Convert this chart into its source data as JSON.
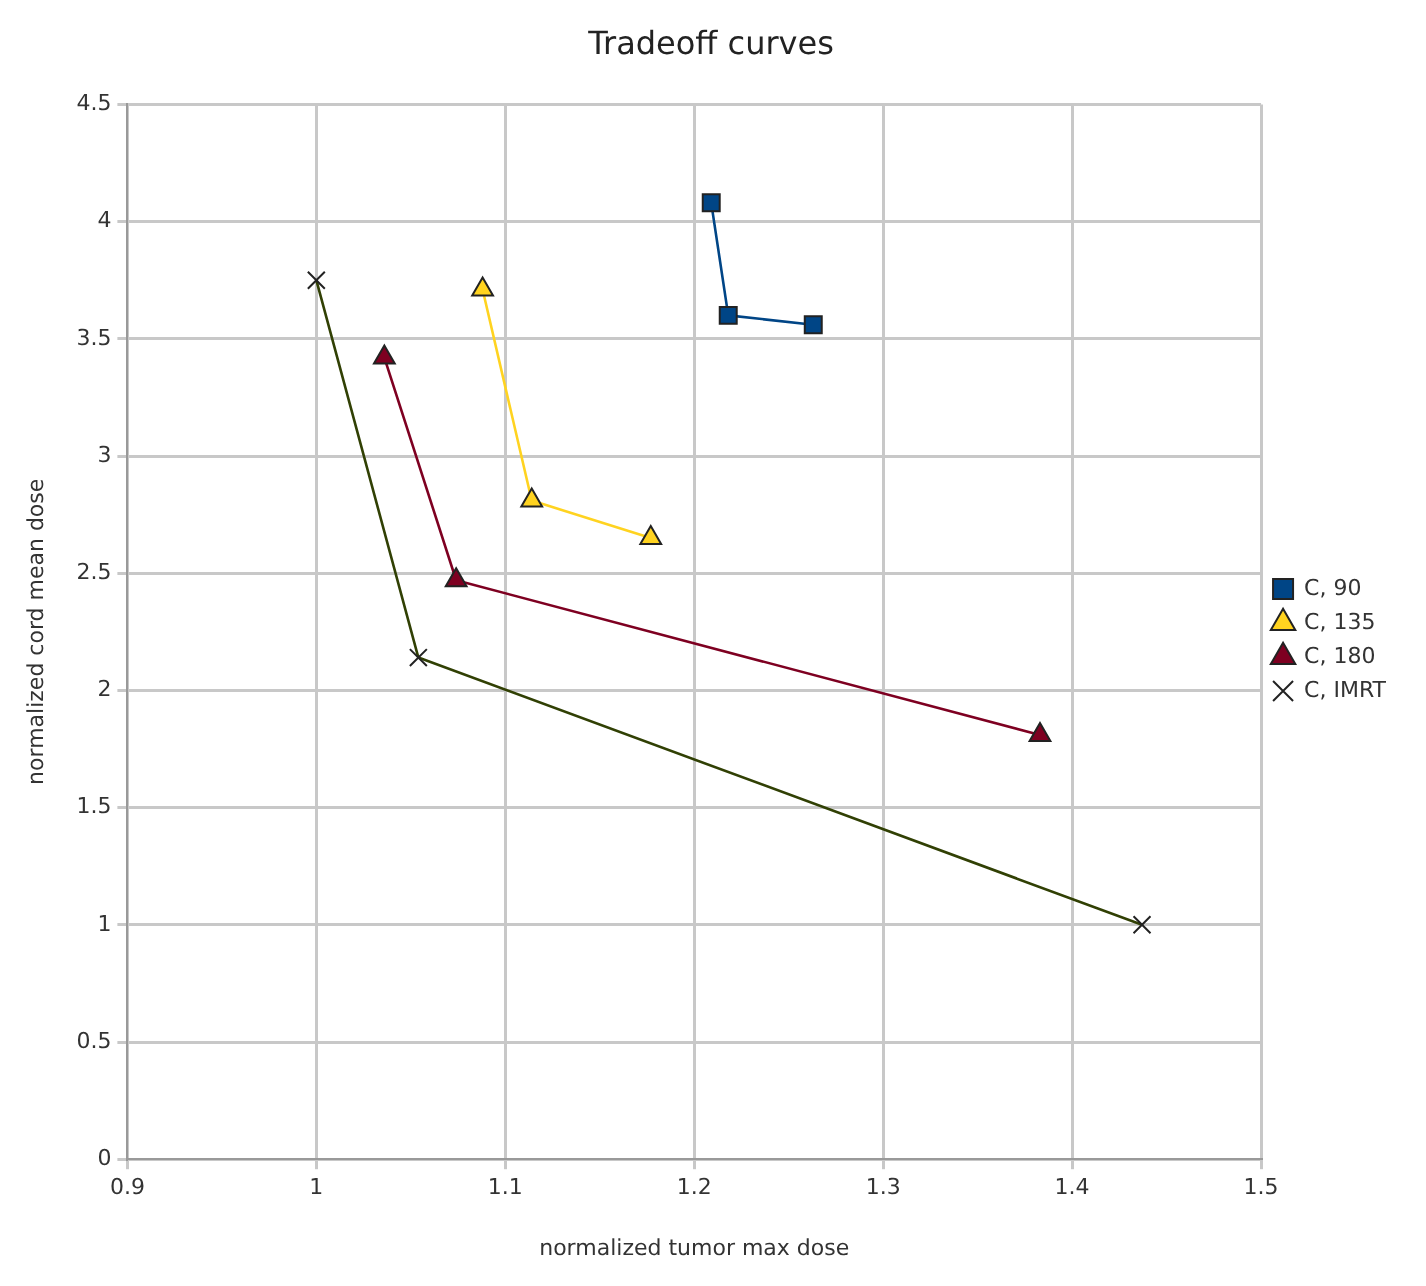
{
  "chart_data": {
    "type": "line",
    "title": "Tradeoff curves",
    "xlabel": "normalized tumor max dose",
    "ylabel": "normalized cord mean dose",
    "xlim": [
      0.9,
      1.5
    ],
    "xticks": [
      0.9,
      1,
      1.1,
      1.2,
      1.3,
      1.4,
      1.5
    ],
    "ylim": [
      0,
      4.5
    ],
    "yticks": [
      0,
      0.5,
      1,
      1.5,
      2,
      2.5,
      3,
      3.5,
      4,
      4.5
    ],
    "grid": true,
    "legend": "right",
    "series": [
      {
        "name": "C, 90",
        "color": "#004586",
        "marker": "square",
        "x": [
          1.209,
          1.218,
          1.263
        ],
        "values": [
          4.08,
          3.6,
          3.56
        ]
      },
      {
        "name": "C, 135",
        "color": "#ffd320",
        "marker": "triangle",
        "x": [
          1.088,
          1.114,
          1.177
        ],
        "values": [
          3.71,
          2.81,
          2.65
        ]
      },
      {
        "name": "C, 180",
        "color": "#7e0021",
        "marker": "triangle",
        "x": [
          1.036,
          1.074,
          1.383
        ],
        "values": [
          3.42,
          2.47,
          1.81
        ]
      },
      {
        "name": "C, IMRT",
        "color": "#314004",
        "marker": "cross",
        "x": [
          1,
          1.054,
          1.437
        ],
        "values": [
          3.75,
          2.14,
          1
        ]
      }
    ]
  }
}
